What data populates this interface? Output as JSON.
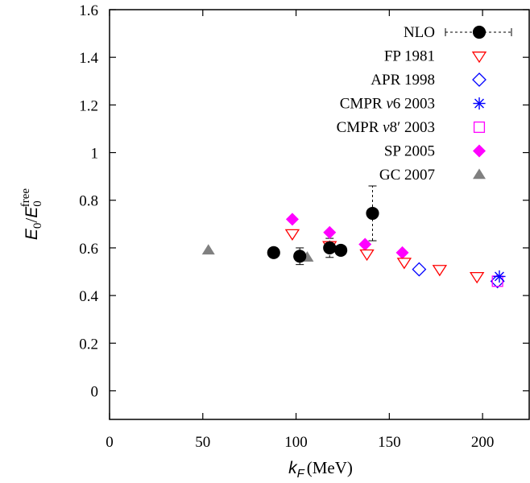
{
  "chart_data": {
    "type": "scatter",
    "xlabel_symbol": "k",
    "xlabel_subscript": "F",
    "xlabel_unit": "(MeV)",
    "ylabel_symbol": "E",
    "ylabel_sub": "0",
    "ylabel_mid": "/",
    "ylabel_symbol2": "E",
    "ylabel_sub2": "0",
    "ylabel_sup2": "free",
    "xlim": [
      0,
      225
    ],
    "ylim": [
      -0.12,
      1.6
    ],
    "xticks": [
      {
        "value": 0,
        "label": "0"
      },
      {
        "value": 50,
        "label": "50"
      },
      {
        "value": 100,
        "label": "100"
      },
      {
        "value": 150,
        "label": "150"
      },
      {
        "value": 200,
        "label": "200"
      }
    ],
    "yticks": [
      {
        "value": 0,
        "label": "0"
      },
      {
        "value": 0.2,
        "label": "0.2"
      },
      {
        "value": 0.4,
        "label": "0.4"
      },
      {
        "value": 0.6,
        "label": "0.6"
      },
      {
        "value": 0.8,
        "label": "0.8"
      },
      {
        "value": 1.0,
        "label": "1"
      },
      {
        "value": 1.2,
        "label": "1.2"
      },
      {
        "value": 1.4,
        "label": "1.4"
      },
      {
        "value": 1.6,
        "label": "1.6"
      }
    ],
    "legend_position": "top-right",
    "series": [
      {
        "name": "NLO",
        "label_main": "NLO",
        "marker": "filled-circle",
        "color": "#000000",
        "points": [
          {
            "x": 88,
            "y": 0.58,
            "ylo": 0.56,
            "yhi": 0.6
          },
          {
            "x": 102,
            "y": 0.565,
            "ylo": 0.53,
            "yhi": 0.6
          },
          {
            "x": 118,
            "y": 0.6,
            "ylo": 0.56,
            "yhi": 0.64
          },
          {
            "x": 124,
            "y": 0.59,
            "ylo": 0.58,
            "yhi": 0.6
          },
          {
            "x": 141,
            "y": 0.745,
            "ylo": 0.63,
            "yhi": 0.86
          }
        ]
      },
      {
        "name": "FP 1981",
        "label_main": "FP 1981",
        "marker": "open-triangle-down",
        "color": "#ff0000",
        "points": [
          {
            "x": 98,
            "y": 0.66
          },
          {
            "x": 118,
            "y": 0.61
          },
          {
            "x": 138,
            "y": 0.575
          },
          {
            "x": 158,
            "y": 0.54
          },
          {
            "x": 177,
            "y": 0.51
          },
          {
            "x": 197,
            "y": 0.48
          }
        ]
      },
      {
        "name": "APR 1998",
        "label_main": "APR 1998",
        "marker": "open-diamond",
        "color": "#0000ff",
        "points": [
          {
            "x": 166,
            "y": 0.51
          },
          {
            "x": 208,
            "y": 0.46
          }
        ]
      },
      {
        "name": "CMPR v6 2003",
        "label_main": "CMPR ",
        "label_italic": "v",
        "label_suffix": "6 2003",
        "marker": "star",
        "color": "#0000ff",
        "points": [
          {
            "x": 209,
            "y": 0.48
          }
        ]
      },
      {
        "name": "CMPR v8' 2003",
        "label_main": "CMPR ",
        "label_italic": "v",
        "label_suffix": "8′ 2003",
        "marker": "open-square",
        "color": "#ff00ff",
        "points": [
          {
            "x": 208,
            "y": 0.46
          }
        ]
      },
      {
        "name": "SP 2005",
        "label_main": "SP 2005",
        "marker": "filled-diamond",
        "color": "#ff00ff",
        "points": [
          {
            "x": 98,
            "y": 0.72
          },
          {
            "x": 118,
            "y": 0.665
          },
          {
            "x": 137,
            "y": 0.615
          },
          {
            "x": 157,
            "y": 0.58
          }
        ]
      },
      {
        "name": "GC 2007",
        "label_main": "GC 2007",
        "marker": "filled-triangle-up",
        "color": "#808080",
        "points": [
          {
            "x": 53,
            "y": 0.59
          },
          {
            "x": 106,
            "y": 0.56
          }
        ]
      }
    ]
  }
}
